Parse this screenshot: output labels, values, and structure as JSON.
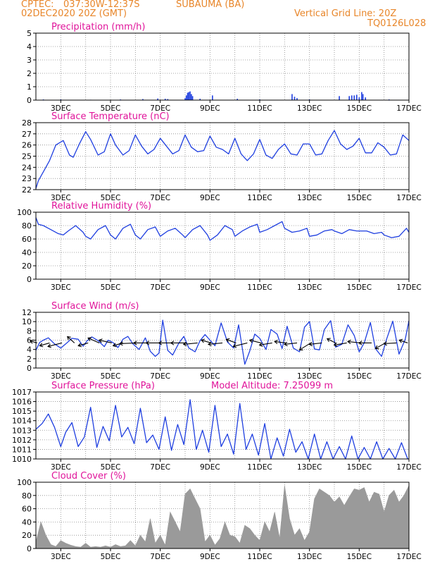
{
  "header": {
    "source": "CPTEC:",
    "coords": "037:30W-12:37S",
    "station": "SUBAUMA (BA)",
    "run": "02DEC2020 20Z (GMT)",
    "grid_note": "Vertical Grid Line: 20Z",
    "model": "TQ0126L028"
  },
  "colors": {
    "header": "#e8862a",
    "title": "#e0149a",
    "line": "#1f3fe0",
    "cloud": "#9a9a9a",
    "grid": "#8a8a8a",
    "wind_arrow": "#000000"
  },
  "x_axis": {
    "ticks": [
      "3DEC",
      "5DEC",
      "7DEC",
      "9DEC",
      "11DEC",
      "13DEC",
      "15DEC",
      "17DEC"
    ],
    "range_days": [
      2.0,
      17.0
    ]
  },
  "chart_data": [
    {
      "id": "precip",
      "type": "bar",
      "title": "Precipitation (mm/h)",
      "ylim": [
        0,
        5
      ],
      "yticks": [
        0,
        1,
        2,
        3,
        4,
        5
      ],
      "bars": [
        [
          2.3,
          0.05
        ],
        [
          3.0,
          0.05
        ],
        [
          4.2,
          0.03
        ],
        [
          5.4,
          0.05
        ],
        [
          6.3,
          0.08
        ],
        [
          6.9,
          0.12
        ],
        [
          7.2,
          0.1
        ],
        [
          7.3,
          0.08
        ],
        [
          8.0,
          0.15
        ],
        [
          8.05,
          0.35
        ],
        [
          8.1,
          0.55
        ],
        [
          8.15,
          0.6
        ],
        [
          8.2,
          0.65
        ],
        [
          8.25,
          0.45
        ],
        [
          8.3,
          0.3
        ],
        [
          8.6,
          0.1
        ],
        [
          9.1,
          0.35
        ],
        [
          10.1,
          0.1
        ],
        [
          11.0,
          0.05
        ],
        [
          12.3,
          0.45
        ],
        [
          12.4,
          0.25
        ],
        [
          12.5,
          0.15
        ],
        [
          13.0,
          0.05
        ],
        [
          14.2,
          0.3
        ],
        [
          14.6,
          0.3
        ],
        [
          14.7,
          0.35
        ],
        [
          14.8,
          0.35
        ],
        [
          14.9,
          0.4
        ],
        [
          15.0,
          0.2
        ],
        [
          15.1,
          0.6
        ],
        [
          15.15,
          0.45
        ],
        [
          15.25,
          0.2
        ],
        [
          16.2,
          0.05
        ]
      ]
    },
    {
      "id": "temp",
      "type": "line",
      "title": "Surface Temperature (nC)",
      "ylim": [
        22,
        28
      ],
      "yticks": [
        22,
        23,
        24,
        25,
        26,
        27,
        28
      ],
      "x": [
        2.0,
        2.1,
        2.3,
        2.55,
        2.8,
        3.1,
        3.35,
        3.5,
        3.75,
        4.0,
        4.2,
        4.5,
        4.75,
        5.0,
        5.2,
        5.5,
        5.75,
        6.0,
        6.25,
        6.5,
        6.75,
        7.0,
        7.25,
        7.5,
        7.75,
        8.0,
        8.25,
        8.5,
        8.75,
        9.0,
        9.25,
        9.5,
        9.75,
        10.0,
        10.25,
        10.5,
        10.75,
        11.0,
        11.25,
        11.5,
        11.75,
        12.0,
        12.25,
        12.5,
        12.75,
        13.0,
        13.25,
        13.5,
        13.75,
        14.0,
        14.25,
        14.5,
        14.75,
        15.0,
        15.25,
        15.5,
        15.75,
        16.0,
        16.25,
        16.5,
        16.75,
        17.0
      ],
      "values": [
        22.1,
        22.8,
        23.6,
        24.6,
        26.0,
        26.4,
        25.1,
        24.9,
        26.1,
        27.2,
        26.5,
        25.1,
        25.4,
        27.0,
        26.0,
        25.1,
        25.5,
        26.9,
        25.9,
        25.2,
        25.6,
        26.6,
        25.9,
        25.2,
        25.5,
        26.9,
        25.8,
        25.4,
        25.5,
        26.8,
        25.8,
        25.6,
        25.2,
        26.6,
        25.2,
        24.6,
        25.2,
        26.5,
        25.1,
        24.8,
        25.6,
        26.1,
        25.2,
        25.1,
        26.1,
        26.1,
        25.1,
        25.2,
        26.4,
        27.3,
        26.1,
        25.6,
        25.9,
        26.6,
        25.3,
        25.3,
        26.2,
        25.8,
        25.1,
        25.2,
        26.9,
        26.4
      ]
    },
    {
      "id": "rh",
      "type": "line",
      "title": "Relative Humidity (%)",
      "ylim": [
        0,
        100
      ],
      "yticks": [
        0,
        20,
        40,
        60,
        80,
        100
      ],
      "x": [
        2.0,
        2.1,
        2.3,
        2.5,
        2.7,
        2.9,
        3.1,
        3.3,
        3.6,
        3.9,
        4.0,
        4.2,
        4.5,
        4.8,
        5.0,
        5.2,
        5.5,
        5.8,
        6.0,
        6.2,
        6.5,
        6.8,
        7.0,
        7.3,
        7.6,
        7.9,
        8.0,
        8.3,
        8.6,
        8.9,
        9.0,
        9.3,
        9.6,
        9.9,
        10.0,
        10.3,
        10.6,
        10.9,
        11.0,
        11.3,
        11.6,
        11.9,
        12.0,
        12.3,
        12.6,
        12.9,
        13.0,
        13.3,
        13.6,
        13.9,
        14.0,
        14.3,
        14.6,
        14.9,
        15.0,
        15.3,
        15.6,
        15.9,
        16.0,
        16.3,
        16.6,
        16.9,
        17.0
      ],
      "values": [
        92,
        82,
        80,
        76,
        72,
        68,
        66,
        72,
        80,
        70,
        64,
        60,
        74,
        80,
        66,
        60,
        76,
        82,
        66,
        60,
        74,
        78,
        64,
        72,
        76,
        66,
        62,
        74,
        80,
        66,
        58,
        66,
        80,
        74,
        64,
        72,
        78,
        82,
        70,
        74,
        80,
        86,
        76,
        70,
        72,
        76,
        64,
        66,
        72,
        74,
        72,
        68,
        74,
        72,
        72,
        72,
        68,
        70,
        66,
        62,
        64,
        76,
        70
      ]
    },
    {
      "id": "wind",
      "type": "line",
      "title": "Surface Wind (m/s)",
      "ylim": [
        0,
        12
      ],
      "yticks": [
        0,
        2,
        4,
        6,
        8,
        10,
        12
      ],
      "x": [
        2.0,
        2.15,
        2.3,
        2.5,
        2.75,
        3.0,
        3.2,
        3.45,
        3.7,
        3.9,
        4.05,
        4.25,
        4.5,
        4.75,
        4.9,
        5.1,
        5.3,
        5.5,
        5.7,
        5.9,
        6.15,
        6.4,
        6.6,
        6.8,
        6.95,
        7.1,
        7.3,
        7.5,
        7.75,
        7.95,
        8.15,
        8.4,
        8.6,
        8.8,
        9.0,
        9.2,
        9.45,
        9.7,
        9.95,
        10.15,
        10.4,
        10.6,
        10.8,
        11.0,
        11.25,
        11.45,
        11.7,
        11.9,
        12.1,
        12.35,
        12.6,
        12.8,
        13.0,
        13.2,
        13.4,
        13.6,
        13.85,
        14.05,
        14.3,
        14.55,
        14.8,
        15.0,
        15.2,
        15.45,
        15.65,
        15.9,
        16.1,
        16.35,
        16.6,
        16.85,
        17.0
      ],
      "values": [
        3.8,
        5.5,
        6.0,
        6.5,
        5.2,
        4.3,
        5.2,
        6.4,
        6.2,
        4.7,
        5.8,
        6.7,
        5.9,
        4.6,
        6.0,
        5.5,
        4.4,
        6.2,
        6.8,
        5.2,
        4.0,
        6.5,
        3.6,
        2.5,
        3.2,
        10.3,
        3.8,
        2.8,
        5.4,
        6.8,
        4.3,
        3.5,
        5.9,
        7.2,
        6.0,
        4.8,
        9.7,
        5.6,
        4.3,
        9.3,
        0.8,
        3.7,
        7.3,
        6.4,
        4.0,
        8.3,
        7.3,
        4.2,
        9.0,
        4.3,
        3.5,
        8.8,
        10.0,
        4.1,
        3.9,
        8.3,
        10.2,
        4.5,
        5.1,
        9.3,
        7.0,
        3.5,
        5.4,
        9.8,
        4.2,
        2.5,
        6.2,
        10.1,
        3.0,
        6.2,
        10.2
      ]
    },
    {
      "id": "pressure",
      "type": "line",
      "title": "Surface Pressure (hPa)",
      "subtitle": "Model Altitude: 7.25099 m",
      "ylim": [
        1010,
        1017
      ],
      "yticks": [
        1010,
        1011,
        1012,
        1013,
        1014,
        1015,
        1016,
        1017
      ],
      "x": [
        2.0,
        2.25,
        2.5,
        2.75,
        3.0,
        3.2,
        3.45,
        3.7,
        3.95,
        4.2,
        4.45,
        4.7,
        4.95,
        5.2,
        5.45,
        5.7,
        5.95,
        6.2,
        6.45,
        6.7,
        6.95,
        7.2,
        7.45,
        7.7,
        7.95,
        8.2,
        8.45,
        8.7,
        8.95,
        9.2,
        9.45,
        9.7,
        9.95,
        10.2,
        10.45,
        10.7,
        10.95,
        11.2,
        11.45,
        11.7,
        11.95,
        12.2,
        12.45,
        12.7,
        12.95,
        13.2,
        13.45,
        13.7,
        13.95,
        14.2,
        14.45,
        14.7,
        14.95,
        15.2,
        15.45,
        15.7,
        15.95,
        16.2,
        16.45,
        16.7,
        16.95,
        17.0
      ],
      "values": [
        1013.1,
        1013.7,
        1014.7,
        1013.3,
        1011.3,
        1012.8,
        1013.8,
        1011.3,
        1012.3,
        1015.4,
        1011.2,
        1013.4,
        1011.9,
        1015.6,
        1012.3,
        1013.3,
        1011.6,
        1015.3,
        1011.7,
        1012.5,
        1011.0,
        1014.4,
        1010.9,
        1013.6,
        1011.5,
        1016.2,
        1011.0,
        1013.0,
        1010.7,
        1015.6,
        1011.3,
        1012.6,
        1010.5,
        1015.8,
        1011.0,
        1012.6,
        1010.4,
        1013.7,
        1010.0,
        1012.2,
        1010.3,
        1013.1,
        1010.7,
        1011.8,
        1010.0,
        1012.6,
        1010.0,
        1011.8,
        1010.0,
        1011.3,
        1010.0,
        1012.4,
        1010.0,
        1011.2,
        1010.0,
        1011.8,
        1010.0,
        1011.1,
        1010.0,
        1011.7,
        1010.0,
        1010.0
      ]
    },
    {
      "id": "cloud",
      "type": "area",
      "title": "Cloud Cover (%)",
      "ylim": [
        0,
        100
      ],
      "yticks": [
        0,
        20,
        40,
        60,
        80,
        100
      ],
      "x": [
        2.0,
        2.2,
        2.4,
        2.6,
        2.8,
        3.0,
        3.2,
        3.4,
        3.6,
        3.8,
        4.0,
        4.2,
        4.4,
        4.6,
        4.8,
        5.0,
        5.2,
        5.4,
        5.6,
        5.8,
        6.0,
        6.2,
        6.4,
        6.6,
        6.8,
        7.0,
        7.2,
        7.4,
        7.6,
        7.8,
        8.0,
        8.2,
        8.4,
        8.6,
        8.8,
        9.0,
        9.2,
        9.4,
        9.6,
        9.8,
        10.0,
        10.2,
        10.4,
        10.6,
        10.8,
        11.0,
        11.2,
        11.4,
        11.6,
        11.8,
        12.0,
        12.2,
        12.4,
        12.6,
        12.8,
        13.0,
        13.2,
        13.4,
        13.6,
        13.8,
        14.0,
        14.2,
        14.4,
        14.6,
        14.8,
        15.0,
        15.2,
        15.4,
        15.6,
        15.8,
        16.0,
        16.2,
        16.4,
        16.6,
        16.8,
        17.0
      ],
      "values": [
        10,
        40,
        20,
        6,
        3,
        12,
        8,
        5,
        3,
        2,
        8,
        2,
        3,
        2,
        4,
        2,
        6,
        3,
        4,
        12,
        4,
        20,
        10,
        45,
        8,
        20,
        5,
        55,
        40,
        25,
        82,
        90,
        75,
        60,
        10,
        20,
        5,
        15,
        40,
        20,
        18,
        8,
        35,
        30,
        20,
        12,
        40,
        25,
        55,
        15,
        95,
        45,
        20,
        30,
        12,
        25,
        75,
        90,
        85,
        80,
        70,
        78,
        65,
        78,
        90,
        88,
        92,
        70,
        85,
        82,
        55,
        80,
        88,
        70,
        80,
        95
      ]
    }
  ],
  "wind_vectors": [
    [
      2.05,
      -10,
      -3
    ],
    [
      2.55,
      -14,
      4
    ],
    [
      3.05,
      -20,
      5
    ],
    [
      3.55,
      -10,
      -9
    ],
    [
      4.1,
      -14,
      4
    ],
    [
      4.55,
      -16,
      -7
    ],
    [
      5.05,
      -18,
      -4
    ],
    [
      5.5,
      -14,
      4
    ],
    [
      6.05,
      -24,
      1
    ],
    [
      6.5,
      -20,
      0
    ],
    [
      7.0,
      -20,
      0
    ],
    [
      7.45,
      -18,
      0
    ],
    [
      8.05,
      -22,
      0
    ],
    [
      8.5,
      -20,
      2
    ],
    [
      9.05,
      -14,
      -4
    ],
    [
      9.5,
      -20,
      2
    ],
    [
      10.05,
      -14,
      -5
    ],
    [
      10.5,
      -20,
      5
    ],
    [
      11.05,
      -16,
      -4
    ],
    [
      11.5,
      -18,
      3
    ],
    [
      12.05,
      -16,
      -2
    ],
    [
      12.5,
      -18,
      2
    ],
    [
      13.05,
      -16,
      10
    ],
    [
      13.5,
      -18,
      2
    ],
    [
      14.05,
      -12,
      -6
    ],
    [
      14.5,
      -18,
      3
    ],
    [
      15.05,
      -18,
      -2
    ],
    [
      15.5,
      -18,
      0
    ],
    [
      16.05,
      -14,
      8
    ],
    [
      16.5,
      -18,
      1
    ],
    [
      16.95,
      -12,
      -4
    ]
  ]
}
